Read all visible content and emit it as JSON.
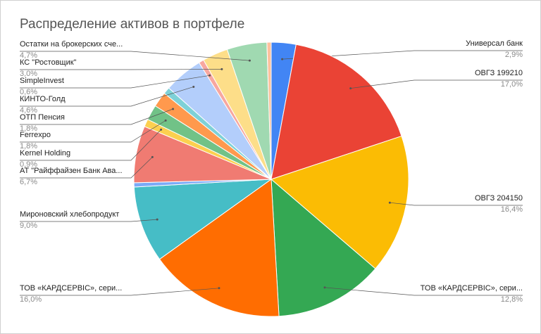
{
  "chart_data": {
    "type": "pie",
    "title": "Распределение активов в портфеле",
    "categories": [
      "Универсал банк",
      "ОВГЗ 199210",
      "ОВГЗ 204150",
      "ТОВ «КАРДСЕРВІС», сери...",
      "ТОВ «КАРДСЕРВІС», сери...",
      "Мироновский хлебопродукт",
      null,
      "АТ \"Райффайзен Банк Ава...",
      "Kernel Holding",
      "Ferrexpo",
      "ОТП Пенсия",
      null,
      "КИНТО-Голд",
      "SimpleInvest",
      "КС \"Ростовщик\"",
      "Остатки на брокерских сче...",
      null
    ],
    "values": [
      2.9,
      17.0,
      16.4,
      12.8,
      16.0,
      9.0,
      0.5,
      6.7,
      0.9,
      1.8,
      1.8,
      0.8,
      4.6,
      0.6,
      3.0,
      4.7,
      0.5
    ],
    "value_labels": [
      "2,9%",
      "17,0%",
      "16,4%",
      "12,8%",
      "16,0%",
      "9,0%",
      null,
      "6,7%",
      "0,9%",
      "1,8%",
      "1,8%",
      null,
      "4,6%",
      "0,6%",
      "3,0%",
      "4,7%",
      null
    ],
    "colors": [
      "#4285F4",
      "#EA4335",
      "#FBBC04",
      "#34A853",
      "#FF6D01",
      "#46BDC6",
      "#7BAAF7",
      "#F07B72",
      "#FCD04F",
      "#71C287",
      "#FF994D",
      "#7ED1D7",
      "#B3CEFB",
      "#F7A7A0",
      "#FDDE89",
      "#A0D9B1",
      "#FFC29E"
    ]
  }
}
